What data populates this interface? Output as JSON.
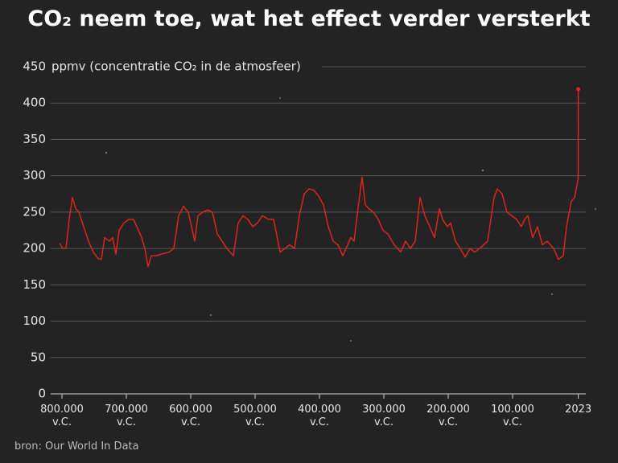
{
  "chart_data": {
    "type": "line",
    "title": "CO₂ neem toe, wat het effect verder versterkt",
    "y_label": "ppmv (concentratie CO₂ in de atmosfeer)",
    "source": "bron: Our World In Data",
    "xlim": [
      -817500,
      13750
    ],
    "ylim": [
      0,
      450
    ],
    "yticks": [
      0,
      50,
      100,
      150,
      200,
      250,
      300,
      350,
      400,
      450
    ],
    "xticks": [
      {
        "value": -800000,
        "label": "800.000 v.C."
      },
      {
        "value": -700000,
        "label": "700.000 v.C."
      },
      {
        "value": -600000,
        "label": "600.000 v.C."
      },
      {
        "value": -500000,
        "label": "500.000 v.C."
      },
      {
        "value": -400000,
        "label": "400.000 v.C."
      },
      {
        "value": -300000,
        "label": "300.000 v.C."
      },
      {
        "value": -200000,
        "label": "200.000 v.C."
      },
      {
        "value": -100000,
        "label": "100.000 v.C."
      },
      2023
    ],
    "grid": true,
    "series": [
      {
        "color": "#e8251d",
        "x": [
          -803750,
          -798750,
          -793750,
          -788750,
          -783750,
          -778750,
          -773750,
          -766250,
          -758750,
          -751250,
          -743750,
          -738750,
          -733750,
          -726250,
          -721250,
          -716250,
          -711250,
          -703750,
          -696250,
          -688750,
          -683750,
          -676250,
          -671250,
          -666250,
          -661250,
          -653750,
          -646250,
          -633750,
          -626250,
          -618750,
          -611250,
          -603750,
          -598750,
          -593750,
          -588750,
          -581250,
          -573750,
          -566250,
          -558750,
          -551250,
          -543750,
          -533750,
          -526250,
          -518750,
          -511250,
          -503750,
          -496250,
          -488750,
          -478750,
          -471250,
          -466250,
          -461250,
          -453750,
          -446250,
          -438750,
          -431250,
          -423750,
          -416250,
          -408750,
          -401250,
          -393750,
          -386250,
          -378750,
          -371250,
          -363750,
          -358750,
          -351250,
          -346250,
          -338750,
          -333750,
          -328750,
          -323750,
          -316250,
          -308750,
          -301250,
          -293750,
          -283750,
          -273750,
          -266250,
          -258750,
          -251250,
          -243750,
          -236250,
          -228750,
          -221250,
          -213750,
          -208750,
          -201250,
          -196250,
          -188750,
          -181250,
          -173750,
          -166250,
          -158750,
          -151250,
          -138750,
          -128750,
          -123750,
          -116250,
          -108750,
          -101250,
          -93750,
          -86250,
          -81250,
          -76250,
          -68750,
          -61250,
          -53750,
          -46250,
          -36250,
          -28750,
          -21250,
          -16250,
          -8750,
          -3750,
          1900,
          2023
        ],
        "values": [
          207,
          200,
          200,
          240,
          270,
          255,
          250,
          230,
          210,
          195,
          186,
          185,
          215,
          210,
          215,
          192,
          225,
          235,
          240,
          240,
          230,
          215,
          200,
          175,
          190,
          190,
          192,
          195,
          200,
          245,
          258,
          250,
          230,
          210,
          245,
          250,
          253,
          250,
          220,
          210,
          200,
          190,
          235,
          245,
          240,
          230,
          235,
          245,
          240,
          240,
          218,
          195,
          200,
          205,
          200,
          245,
          275,
          282,
          280,
          272,
          260,
          230,
          210,
          205,
          190,
          200,
          215,
          210,
          265,
          298,
          260,
          255,
          250,
          240,
          225,
          220,
          205,
          195,
          210,
          200,
          210,
          270,
          245,
          230,
          215,
          255,
          240,
          230,
          235,
          210,
          200,
          188,
          200,
          195,
          200,
          210,
          270,
          282,
          275,
          250,
          245,
          240,
          230,
          240,
          245,
          215,
          230,
          205,
          210,
          200,
          185,
          190,
          230,
          265,
          270,
          296,
          419
        ]
      }
    ]
  }
}
